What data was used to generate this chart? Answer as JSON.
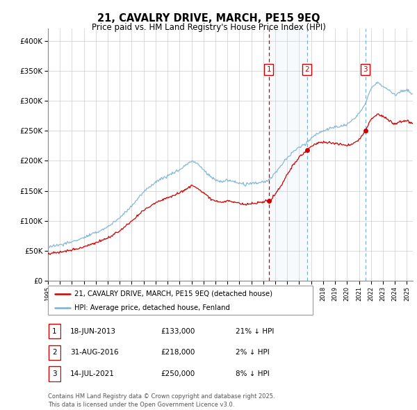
{
  "title": "21, CAVALRY DRIVE, MARCH, PE15 9EQ",
  "subtitle": "Price paid vs. HM Land Registry's House Price Index (HPI)",
  "legend_line1": "21, CAVALRY DRIVE, MARCH, PE15 9EQ (detached house)",
  "legend_line2": "HPI: Average price, detached house, Fenland",
  "footer": "Contains HM Land Registry data © Crown copyright and database right 2025.\nThis data is licensed under the Open Government Licence v3.0.",
  "sale_dates_str": [
    "18-JUN-2013",
    "31-AUG-2016",
    "14-JUL-2021"
  ],
  "sale_prices_str": [
    "£133,000",
    "£218,000",
    "£250,000"
  ],
  "sale_prices": [
    133000,
    218000,
    250000
  ],
  "sale_hpi_diff": [
    "21% ↓ HPI",
    "2% ↓ HPI",
    "8% ↓ HPI"
  ],
  "sale_years": [
    2013.46,
    2016.66,
    2021.54
  ],
  "ymin": 0,
  "ymax": 420000,
  "xmin": 1995,
  "xmax": 2025.5,
  "red_color": "#cc0000",
  "blue_color": "#7ab0d4",
  "shade_color": "#cce0f0",
  "grid_color": "#cccccc",
  "vline1_color": "#cc0000",
  "vline2_color": "#7ab0d4",
  "vline3_color": "#7ab0d4"
}
